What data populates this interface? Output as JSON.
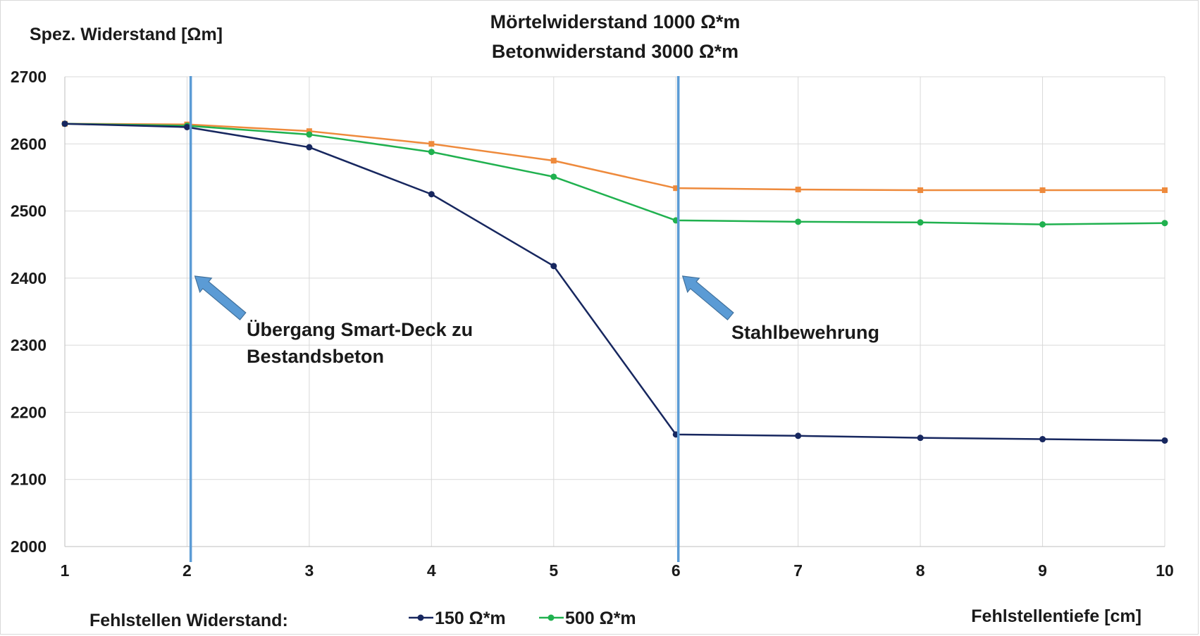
{
  "chart_data": {
    "type": "line",
    "title_lines": [
      "Mörtelwiderstand 1000 Ω*m",
      "Betonwiderstand 3000 Ω*m"
    ],
    "ylabel": "Spez. Widerstand [Ωm]",
    "xlabel": "Fehlstellentiefe [cm]",
    "legend_title": "Fehlstellen Widerstand:",
    "legend_position": "bottom",
    "grid": true,
    "x": [
      1,
      2,
      3,
      4,
      5,
      6,
      7,
      8,
      9,
      10
    ],
    "xlim": [
      1,
      10
    ],
    "ylim": [
      2000,
      2700
    ],
    "y_ticks": [
      2000,
      2100,
      2200,
      2300,
      2400,
      2500,
      2600,
      2700
    ],
    "series": [
      {
        "name": "150 Ω*m",
        "color": "#17275f",
        "marker": "circle",
        "in_legend": true,
        "values": [
          2630,
          2625,
          2595,
          2525,
          2418,
          2167,
          2165,
          2162,
          2160,
          2158
        ]
      },
      {
        "name": "500 Ω*m",
        "color": "#20b14f",
        "marker": "circle",
        "in_legend": true,
        "values": [
          2630,
          2627,
          2614,
          2588,
          2551,
          2486,
          2484,
          2483,
          2480,
          2482
        ]
      },
      {
        "name": "",
        "color": "#ee8a3c",
        "marker": "square",
        "in_legend": false,
        "values": [
          2630,
          2629,
          2619,
          2600,
          2575,
          2534,
          2532,
          2531,
          2531,
          2531
        ]
      }
    ],
    "vertical_lines": [
      {
        "x": 2.03,
        "color": "#5b9bd5"
      },
      {
        "x": 6.02,
        "color": "#5b9bd5"
      }
    ],
    "annotations": [
      {
        "lines": [
          "Übergang Smart-Deck zu",
          "Bestandsbeton"
        ],
        "points_to_x": 2.03,
        "arrow_color": "#5b9bd5"
      },
      {
        "lines": [
          "Stahlbewehrung"
        ],
        "points_to_x": 6.02,
        "arrow_color": "#5b9bd5"
      }
    ]
  }
}
